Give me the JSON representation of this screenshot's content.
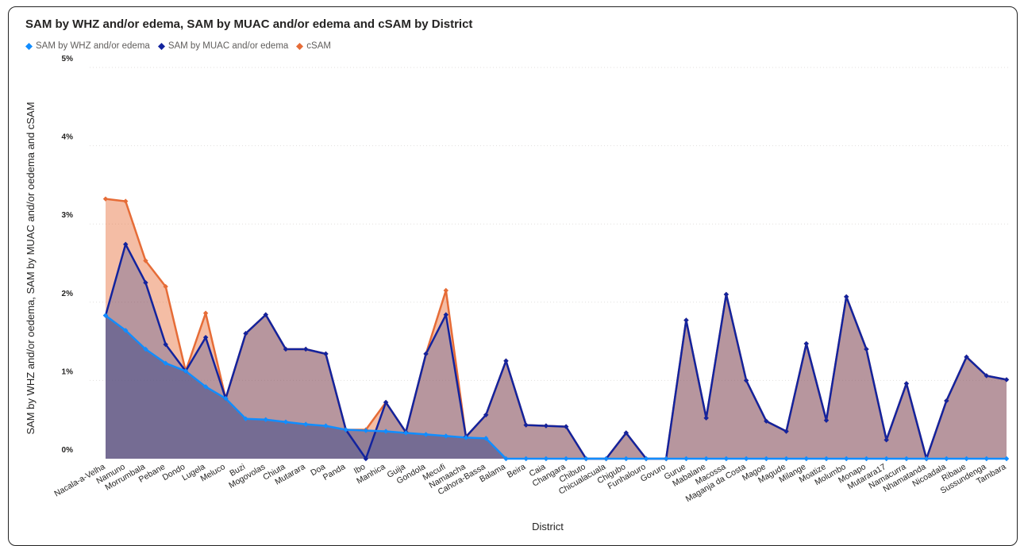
{
  "chart_data": {
    "type": "area",
    "title": "SAM by WHZ and/or edema, SAM by MUAC and/or edema and cSAM by District",
    "xlabel": "District",
    "ylabel": "SAM by WHZ and/or oedema, SAM by MUAC and/or oedema and cSAM",
    "ylim": [
      0,
      5
    ],
    "yticks": [
      {
        "value": 0,
        "label": "0%"
      },
      {
        "value": 1,
        "label": "1%"
      },
      {
        "value": 2,
        "label": "2%"
      },
      {
        "value": 3,
        "label": "3%"
      },
      {
        "value": 4,
        "label": "4%"
      },
      {
        "value": 5,
        "label": "5%"
      }
    ],
    "grid": true,
    "legend_position": "top-left",
    "categories": [
      "Nacala-a-Velha",
      "Namuno",
      "Morrumbala",
      "Pebane",
      "Dondo",
      "Lugela",
      "Meluco",
      "Buzi",
      "Mogovolas",
      "Chiuta",
      "Mutarara",
      "Doa",
      "Panda",
      "Ibo",
      "Manhica",
      "Guija",
      "Gondola",
      "Mecufi",
      "Namaacha",
      "Cahora-Bassa",
      "Balama",
      "Beira",
      "Caia",
      "Changara",
      "Chibuto",
      "Chicualacuala",
      "Chigubo",
      "Funhalouro",
      "Govuro",
      "Gurue",
      "Mabalane",
      "Macossa",
      "Maganja da Costa",
      "Magoe",
      "Magude",
      "Milange",
      "Moatize",
      "Molumbo",
      "Monapo",
      "Mutarara17",
      "Namacurra",
      "Nhamatanda",
      "Nicoadala",
      "Ribaue",
      "Sussundenga",
      "Tambara"
    ],
    "series": [
      {
        "name": "SAM by WHZ and/or edema",
        "color": "#118DFF",
        "values": [
          1.83,
          1.64,
          1.4,
          1.22,
          1.12,
          0.92,
          0.77,
          0.51,
          0.5,
          0.47,
          0.44,
          0.42,
          0.37,
          0.36,
          0.35,
          0.33,
          0.31,
          0.29,
          0.27,
          0.26,
          0,
          0,
          0,
          0,
          0,
          0,
          0,
          0,
          0,
          0,
          0,
          0,
          0,
          0,
          0,
          0,
          0,
          0,
          0,
          0,
          0,
          0,
          0,
          0,
          0,
          0
        ]
      },
      {
        "name": "SAM by MUAC and/or edema",
        "color": "#12239E",
        "values": [
          1.83,
          2.74,
          2.25,
          1.46,
          1.12,
          1.55,
          0.77,
          1.6,
          1.84,
          1.4,
          1.4,
          1.34,
          0.37,
          0.0,
          0.72,
          0.34,
          1.34,
          1.84,
          0.28,
          0.56,
          1.25,
          0.43,
          0.42,
          0.41,
          0,
          0,
          0.33,
          0,
          0,
          1.77,
          0.52,
          2.1,
          1.0,
          0.48,
          0.35,
          1.47,
          0.49,
          2.07,
          1.4,
          0.24,
          0.96,
          0,
          0.74,
          1.3,
          1.06,
          1.01
        ]
      },
      {
        "name": "cSAM",
        "color": "#E66C37",
        "values": [
          3.32,
          3.29,
          2.53,
          2.2,
          1.12,
          1.86,
          0.77,
          1.6,
          1.84,
          1.4,
          1.4,
          1.34,
          0.37,
          0.37,
          0.72,
          0.34,
          1.34,
          2.15,
          0.28,
          0.56,
          1.25,
          0.43,
          0.42,
          0.41,
          0,
          0,
          0.33,
          0,
          0,
          1.77,
          0.52,
          2.1,
          1.0,
          0.48,
          0.35,
          1.47,
          0.49,
          2.07,
          1.4,
          0.24,
          0.96,
          0,
          0.74,
          1.3,
          1.06,
          1.01
        ]
      }
    ]
  }
}
